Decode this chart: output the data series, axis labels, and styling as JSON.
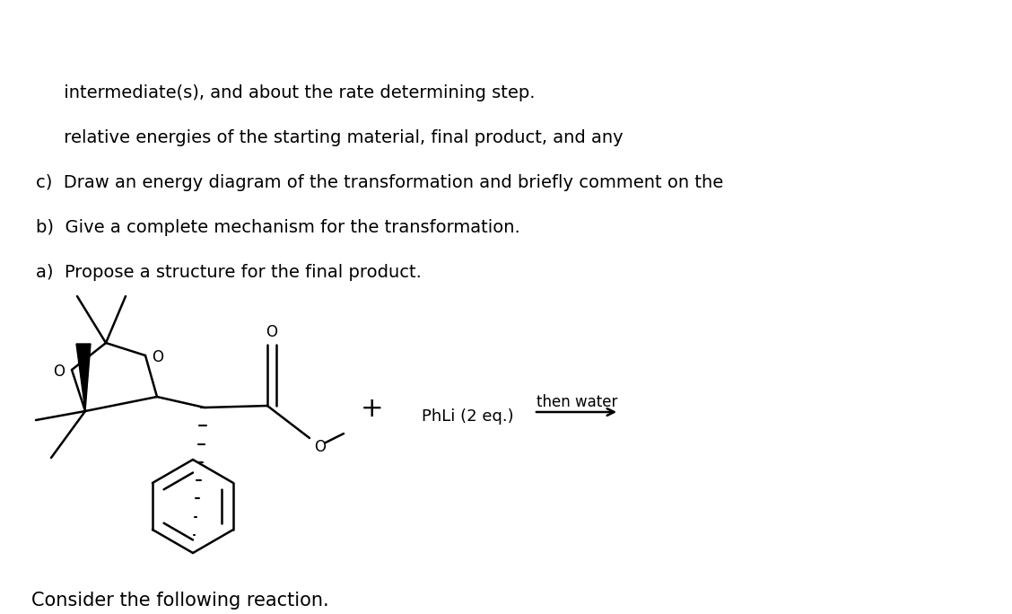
{
  "title": "Consider the following reaction.",
  "bg_color": "#ffffff",
  "question_a": "a)  Propose a structure for the final product.",
  "question_b": "b)  Give a complete mechanism for the transformation.",
  "question_c1": "c)  Draw an energy diagram of the transformation and briefly comment on the",
  "question_c2": "     relative energies of the starting material, final product, and any",
  "question_c3": "     intermediate(s), and about the rate determining step.",
  "fig_width": 11.28,
  "fig_height": 6.84,
  "fig_dpi": 100
}
